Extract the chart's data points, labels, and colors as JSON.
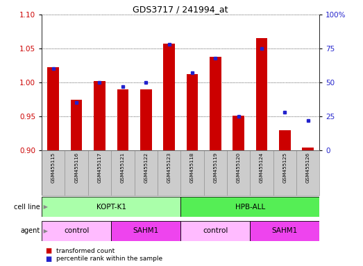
{
  "title": "GDS3717 / 241994_at",
  "samples": [
    "GSM455115",
    "GSM455116",
    "GSM455117",
    "GSM455121",
    "GSM455122",
    "GSM455123",
    "GSM455118",
    "GSM455119",
    "GSM455120",
    "GSM455124",
    "GSM455125",
    "GSM455126"
  ],
  "transformed_counts": [
    1.022,
    0.975,
    1.002,
    0.99,
    0.99,
    1.057,
    1.012,
    1.038,
    0.951,
    1.065,
    0.93,
    0.904
  ],
  "percentile_ranks": [
    60,
    35,
    50,
    47,
    50,
    78,
    57,
    68,
    25,
    75,
    28,
    22
  ],
  "ylim_left": [
    0.9,
    1.1
  ],
  "ylim_right": [
    0,
    100
  ],
  "yticks_left": [
    0.9,
    0.95,
    1.0,
    1.05,
    1.1
  ],
  "yticks_right": [
    0,
    25,
    50,
    75,
    100
  ],
  "bar_color": "#cc0000",
  "dot_color": "#2222cc",
  "bar_width": 0.5,
  "cell_line_groups": [
    {
      "label": "KOPT-K1",
      "start": 0,
      "end": 6,
      "color": "#aaffaa"
    },
    {
      "label": "HPB-ALL",
      "start": 6,
      "end": 12,
      "color": "#55ee55"
    }
  ],
  "agent_groups": [
    {
      "label": "control",
      "start": 0,
      "end": 3,
      "color": "#ffbbff"
    },
    {
      "label": "SAHM1",
      "start": 3,
      "end": 6,
      "color": "#ee44ee"
    },
    {
      "label": "control",
      "start": 6,
      "end": 9,
      "color": "#ffbbff"
    },
    {
      "label": "SAHM1",
      "start": 9,
      "end": 12,
      "color": "#ee44ee"
    }
  ],
  "legend_items": [
    {
      "label": "transformed count",
      "color": "#cc0000"
    },
    {
      "label": "percentile rank within the sample",
      "color": "#2222cc"
    }
  ],
  "tick_color_left": "#cc0000",
  "tick_color_right": "#2222cc",
  "bg_color": "#ffffff",
  "xlabel_bg": "#cccccc"
}
